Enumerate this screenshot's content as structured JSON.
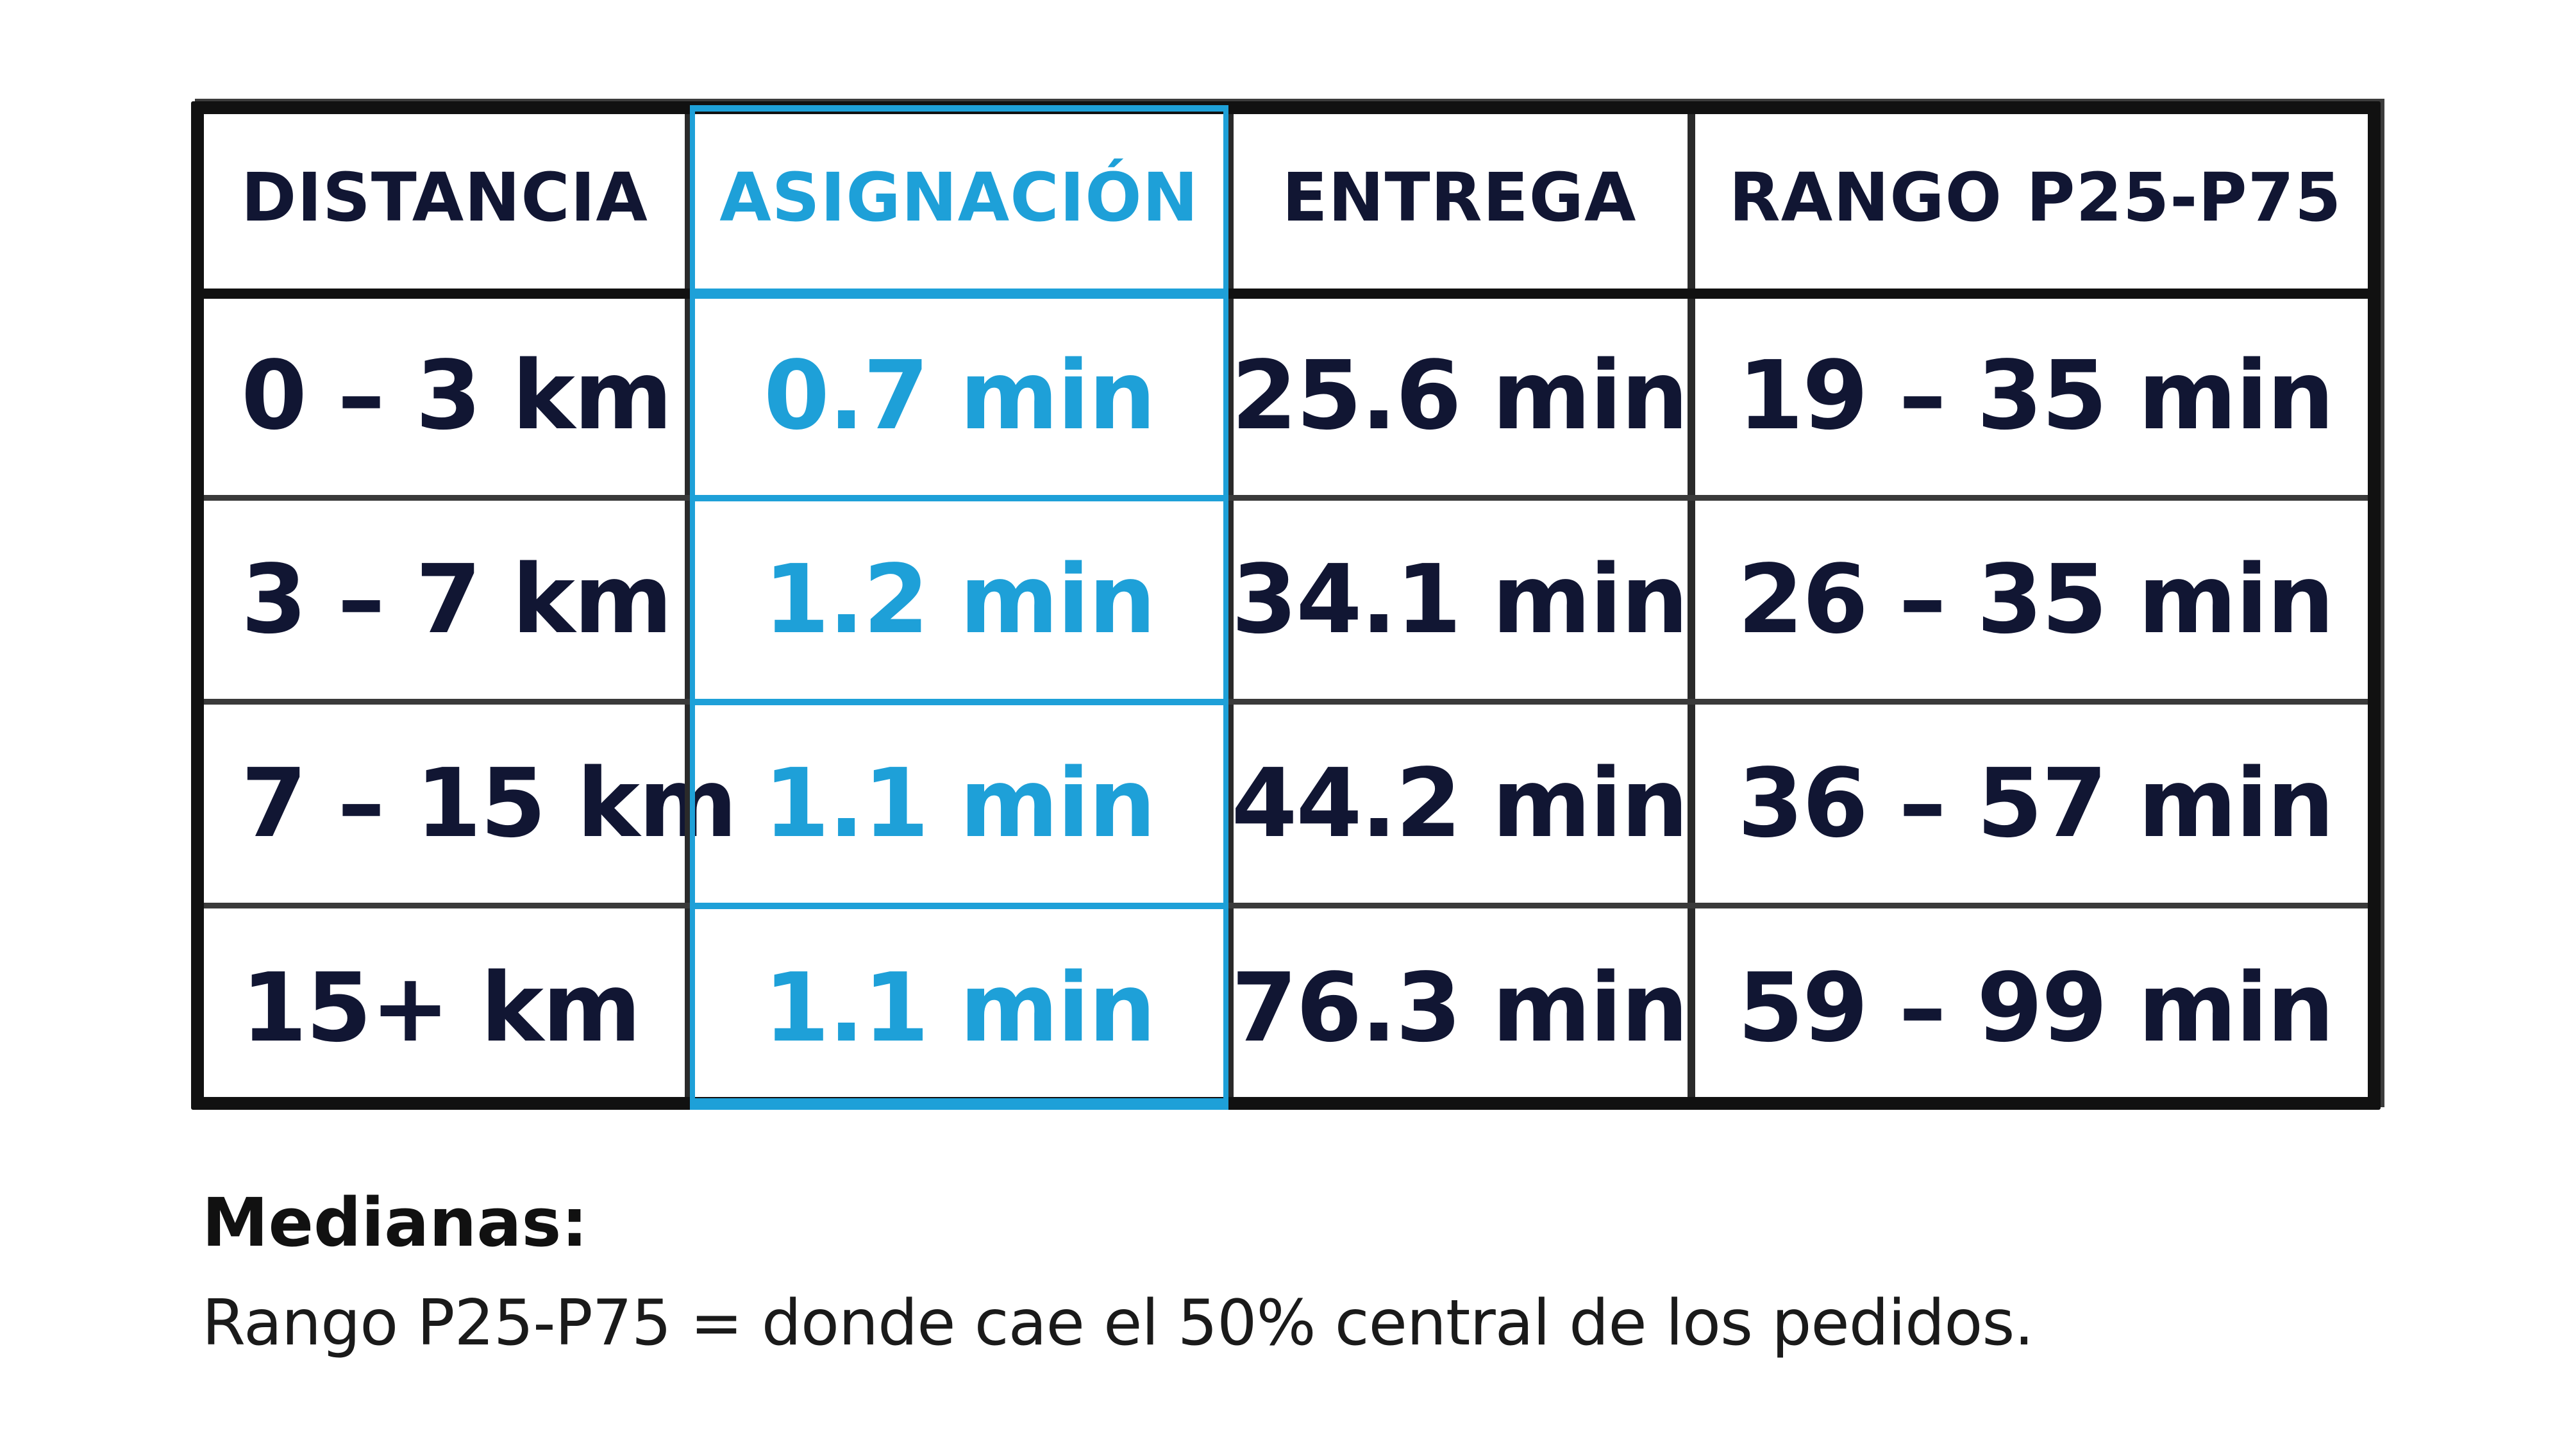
{
  "table": {
    "headers": [
      "DISTANCIA",
      "ASIGNACIÓN",
      "ENTREGA",
      "RANGO P25-P75"
    ],
    "rows": [
      [
        "0 – 3 km",
        "0.7 min",
        "25.6 min",
        "19 – 35 min"
      ],
      [
        "3 – 7 km",
        "1.2 min",
        "34.1 min",
        "26 – 35 min"
      ],
      [
        "7 – 15 km",
        "1.1 min",
        "44.2 min",
        "36 – 57 min"
      ],
      [
        "15+ km",
        "1.1 min",
        "76.3 min",
        "59 – 99 min"
      ]
    ],
    "highlight_column": "ASIGNACIÓN"
  },
  "notes": {
    "title": "Medianas:",
    "text": "Rango P25-P75 = donde cae el 50% central de los pedidos."
  },
  "colors": {
    "text_dark": "#111633",
    "accent_blue": "#1ea0d8",
    "border": "#111111"
  }
}
